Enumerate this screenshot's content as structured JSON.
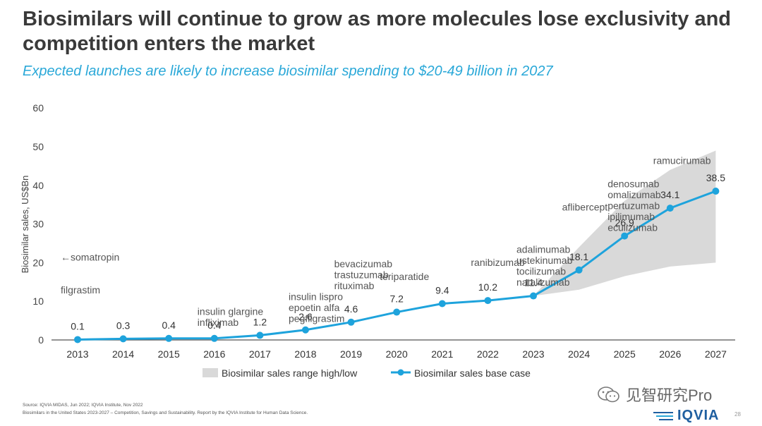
{
  "slide": {
    "title": "Biosimilars will continue to grow as more molecules lose exclusivity and competition enters the market",
    "subtitle": "Expected launches are likely to increase biosimilar spending to $20-49 billion in 2027",
    "source_line1": "Source: IQVIA MIDAS, Jun 2022; IQVIA Institute, Nov 2022",
    "source_line2": "Biosimilars in the United States 2023-2027 – Competition, Savings and Sustainability. Report by the IQVIA Institute for Human Data Science.",
    "watermark": "见智研究Pro",
    "logo": "IQVIA",
    "page_number": "28"
  },
  "chart_data": {
    "type": "line",
    "categories": [
      "2013",
      "2014",
      "2015",
      "2016",
      "2017",
      "2018",
      "2019",
      "2020",
      "2021",
      "2022",
      "2023",
      "2024",
      "2025",
      "2026",
      "2027"
    ],
    "ylabel": "Biosimilar sales, US$Bn",
    "ylim": [
      0,
      60
    ],
    "yticks": [
      0,
      10,
      20,
      30,
      40,
      50,
      60
    ],
    "series": [
      {
        "name": "Biosimilar sales base case",
        "color": "#1ea3dc",
        "values": [
          0.1,
          0.3,
          0.4,
          0.4,
          1.2,
          2.6,
          4.6,
          7.2,
          9.4,
          10.2,
          11.4,
          18.1,
          26.9,
          34.1,
          38.5
        ],
        "labels": [
          "0.1",
          "0.3",
          "0.4",
          "0.4",
          "1.2",
          "2.6",
          "4.6",
          "7.2",
          "9.4",
          "10.2",
          "11.4",
          "18.1",
          "26.9",
          "34.1",
          "38.5"
        ]
      }
    ],
    "range": {
      "name": "Biosimilar sales range high/low",
      "color": "#d9d9d9",
      "years": [
        "2023",
        "2024",
        "2025",
        "2026",
        "2027"
      ],
      "high": [
        11.4,
        24,
        36,
        44,
        49
      ],
      "low": [
        11.4,
        13,
        16.5,
        19,
        20
      ]
    },
    "annotations": [
      {
        "year": "2013",
        "lines": [
          "←somatropin"
        ],
        "y": 20.5
      },
      {
        "year": "2013",
        "lines": [
          "filgrastim"
        ],
        "y": 12
      },
      {
        "year": "2016",
        "lines": [
          "insulin glargine",
          "infliximab"
        ],
        "y": 6.5
      },
      {
        "year": "2018",
        "lines": [
          "insulin lispro",
          "epoetin alfa",
          "pegfilgrastim"
        ],
        "y": 10.3
      },
      {
        "year": "2019",
        "lines": [
          "bevacizumab",
          "trastuzumab",
          "rituximab"
        ],
        "y": 18.8
      },
      {
        "year": "2020",
        "lines": [
          "teriparatide"
        ],
        "y": 15.5
      },
      {
        "year": "2022",
        "lines": [
          "ranibizumab"
        ],
        "y": 19.2
      },
      {
        "year": "2023",
        "lines": [
          "adalimumab",
          "ustekinumab",
          "tocilizumab",
          "natalizumab"
        ],
        "y": 22.5
      },
      {
        "year": "2024",
        "lines": [
          "aflibercept"
        ],
        "y": 33.5
      },
      {
        "year": "2025",
        "lines": [
          "denosumab",
          "omalizumab",
          "pertuzumab",
          "ipilimumab",
          "eculizumab"
        ],
        "y": 39.5
      },
      {
        "year": "2026",
        "lines": [
          "ramucirumab"
        ],
        "y": 45.5
      }
    ],
    "legend": {
      "position": "bottom"
    }
  }
}
